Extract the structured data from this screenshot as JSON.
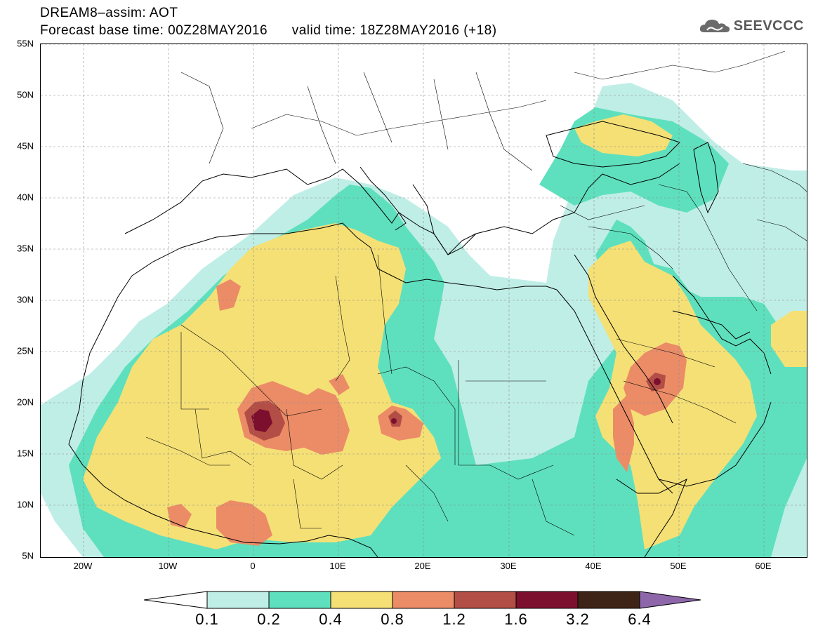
{
  "header": {
    "title": "DREAM8–assim: AOT",
    "subtitle": "Forecast base time: 00Z28MAY2016      valid time: 18Z28MAY2016 (+18)"
  },
  "logo": {
    "text": "SEEVCCC",
    "icon": "cloud-logo-icon"
  },
  "map": {
    "lon_range": [
      -25,
      65
    ],
    "lat_range": [
      5,
      55
    ],
    "grid": true,
    "lat_labels": [
      "55N",
      "50N",
      "45N",
      "40N",
      "35N",
      "30N",
      "25N",
      "20N",
      "15N",
      "10N",
      "5N"
    ],
    "lon_labels": [
      "20W",
      "10W",
      "0",
      "10E",
      "20E",
      "30E",
      "40E",
      "50E",
      "60E"
    ]
  },
  "legend": {
    "labels": [
      "0.1",
      "0.2",
      "0.4",
      "0.8",
      "1.2",
      "1.6",
      "3.2",
      "6.4"
    ],
    "colors": [
      "#ffffff",
      "#bfeee6",
      "#5ee0be",
      "#f5e076",
      "#eb8c67",
      "#b24e45",
      "#7c0f2e",
      "#3e2416",
      "#8e67aa"
    ]
  }
}
